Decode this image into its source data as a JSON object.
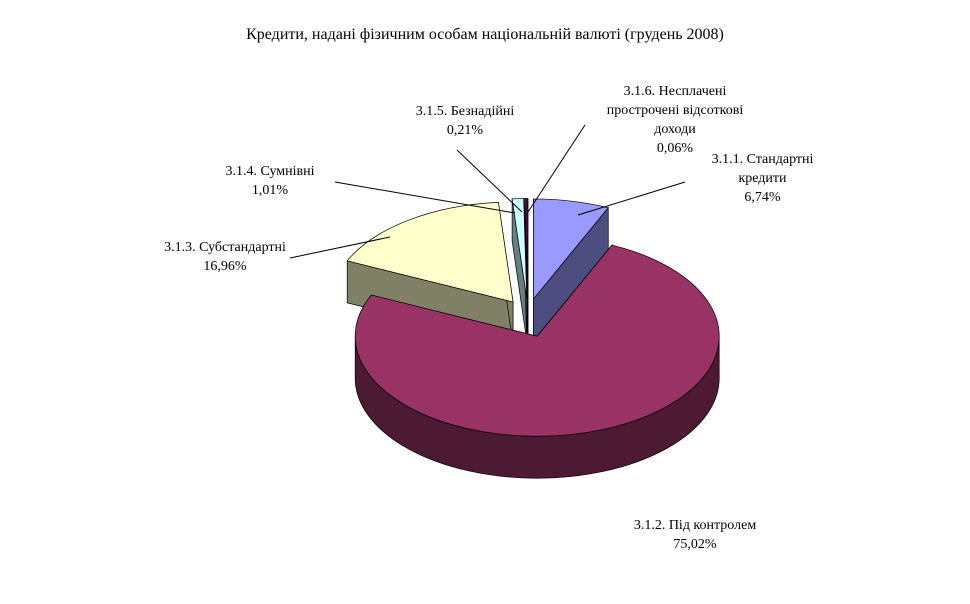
{
  "chart_data": {
    "type": "pie3d",
    "title": "Кредити, надані фізичним особам  національній валюті (грудень 2008)",
    "categories": [
      "3.1.1. Стандартні кредити",
      "3.1.2. Під контролем",
      "3.1.3. Субстандартні",
      "3.1.4. Сумнівні",
      "3.1.5. Безнадійні",
      "3.1.6. Несплачені прострочені відсоткові доходи"
    ],
    "values": [
      6.74,
      75.02,
      16.96,
      1.01,
      0.21,
      0.06
    ],
    "value_labels": [
      "6,74%",
      "75,02%",
      "16,96%",
      "1,01%",
      "0,21%",
      "0,06%"
    ],
    "colors": [
      "#9999ff",
      "#993366",
      "#ffffcc",
      "#ccffff",
      "#660066",
      "#ff8080"
    ]
  }
}
